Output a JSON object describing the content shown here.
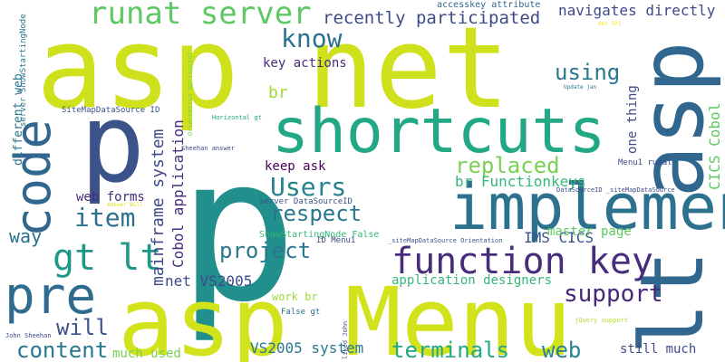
{
  "words": [
    {
      "text": "asp net",
      "color": "#cfe11c"
    },
    {
      "text": "p",
      "color": "#21908c"
    },
    {
      "text": "asp Menu",
      "color": "#d2e21b"
    },
    {
      "text": "p",
      "color": "#3b528b"
    },
    {
      "text": "lt asp",
      "color": "#31668e"
    },
    {
      "text": "shortcuts",
      "color": "#22a884"
    },
    {
      "text": "implement",
      "color": "#2c718e"
    },
    {
      "text": "code",
      "color": "#31668e"
    },
    {
      "text": "pre",
      "color": "#2f6b8e"
    },
    {
      "text": "function key",
      "color": "#472d7b"
    },
    {
      "text": "gt lt",
      "color": "#1f988b"
    },
    {
      "text": "runat server",
      "color": "#5ec962"
    },
    {
      "text": "know",
      "color": "#2c718e"
    },
    {
      "text": "recently participated",
      "color": "#3e4a89"
    },
    {
      "text": "navigates directly",
      "color": "#3e4a89"
    },
    {
      "text": "Users",
      "color": "#26828e"
    },
    {
      "text": "respect",
      "color": "#2a788e"
    },
    {
      "text": "replaced",
      "color": "#7ad151"
    },
    {
      "text": "item",
      "color": "#2c718e"
    },
    {
      "text": "project",
      "color": "#2a788e"
    },
    {
      "text": "support",
      "color": "#482878"
    },
    {
      "text": "using",
      "color": "#2a788e"
    },
    {
      "text": "br",
      "color": "#a0da39"
    },
    {
      "text": "terminals",
      "color": "#22a884"
    },
    {
      "text": "web",
      "color": "#26828e"
    },
    {
      "text": "content",
      "color": "#2a788e"
    },
    {
      "text": "will",
      "color": "#3b528b"
    },
    {
      "text": "way",
      "color": "#2c718e"
    },
    {
      "text": "key actions",
      "color": "#472d7b"
    },
    {
      "text": "keep ask",
      "color": "#440154"
    },
    {
      "text": "br Functionkeys",
      "color": "#35b779"
    },
    {
      "text": "IMS CICS",
      "color": "#3b528b"
    },
    {
      "text": "master page",
      "color": "#5ec962"
    },
    {
      "text": "net VS2005",
      "color": "#3e4a89"
    },
    {
      "text": "application designers",
      "color": "#35b779"
    },
    {
      "text": "web forms",
      "color": "#472d7b"
    },
    {
      "text": "VS2005 system",
      "color": "#2a788e"
    },
    {
      "text": "much used",
      "color": "#7ad151"
    },
    {
      "text": "still much",
      "color": "#3e4a89"
    },
    {
      "text": "mainframe system",
      "color": "#3e4a89"
    },
    {
      "text": "Cobol application",
      "color": "#472d7b"
    },
    {
      "text": "CICS Cobol",
      "color": "#5ec962"
    },
    {
      "text": "one thing",
      "color": "#3e4a89"
    },
    {
      "text": "different web",
      "color": "#2c718e"
    },
    {
      "text": "server ShowStartingNode",
      "color": "#2a788e"
    },
    {
      "text": "accesskey attribute",
      "color": "#31668e"
    },
    {
      "text": "SiteMapDataSource ID",
      "color": "#3b528b"
    },
    {
      "text": "Orientation Horizontal",
      "color": "#7ad151"
    },
    {
      "text": "Horizontal gt",
      "color": "#22a884"
    },
    {
      "text": "Menu1 runat",
      "color": "#3e4a89"
    },
    {
      "text": "DataSourceID _siteMapDataSource",
      "color": "#3e4a89"
    },
    {
      "text": "server DataSourceID",
      "color": "#3b528b"
    },
    {
      "text": "ShowStartingNode False",
      "color": "#35b779"
    },
    {
      "text": "ID Menu1",
      "color": "#3e4a89"
    },
    {
      "text": "_siteMapDataSource Orientation",
      "color": "#3b528b"
    },
    {
      "text": "work br",
      "color": "#9fda3a"
    },
    {
      "text": "False gt",
      "color": "#2c718e"
    },
    {
      "text": "Sheehan answer",
      "color": "#3e4a89"
    },
    {
      "text": "Answer Will",
      "color": "#d8e219"
    },
    {
      "text": "Update jan",
      "color": "#2a788e"
    },
    {
      "text": "Net SP1",
      "color": "#fde725"
    },
    {
      "text": "John Sheehan",
      "color": "#3e4a89"
    },
    {
      "text": "liked John",
      "color": "#3e4a89"
    },
    {
      "text": "jQuery support",
      "color": "#b5de2b"
    }
  ]
}
